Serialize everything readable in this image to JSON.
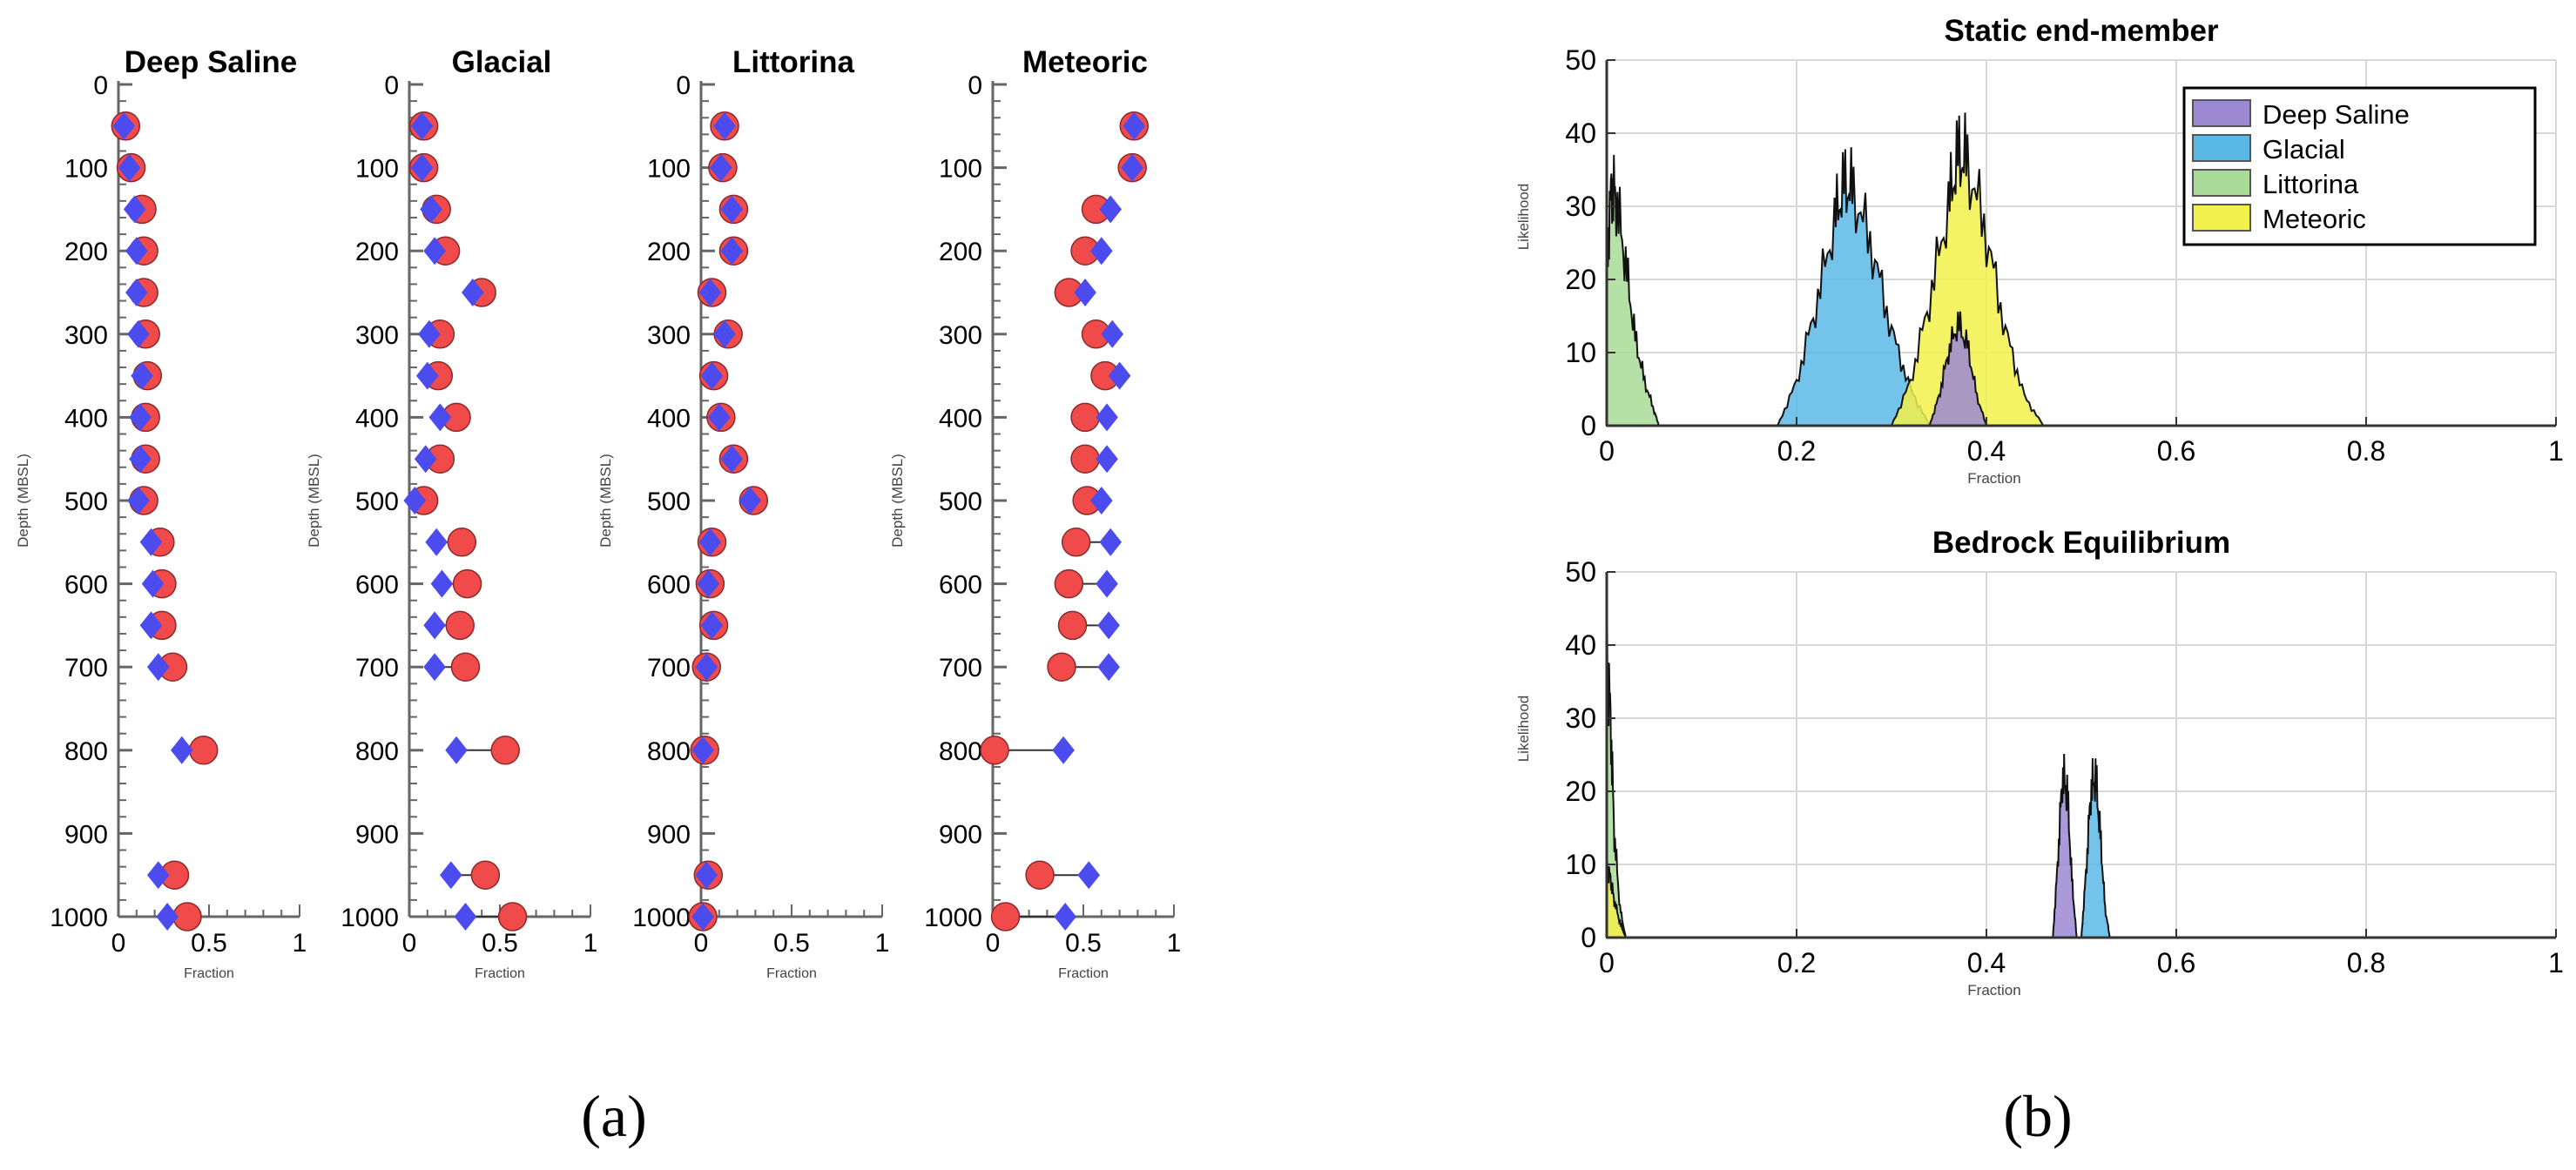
{
  "figure": {
    "panel_a_label": "(a)",
    "panel_b_label": "(b)"
  },
  "chart_data": [
    {
      "id": "depth-deep-saline",
      "type": "scatter",
      "title": "Deep Saline",
      "xlabel": "Fraction",
      "ylabel": "Depth (MBSL)",
      "xlim": [
        0,
        1
      ],
      "ylim": [
        1000,
        0
      ],
      "xticks": [
        0,
        0.5,
        1
      ],
      "xtick_labels": [
        "0",
        "0.5",
        "1"
      ],
      "yticks": [
        0,
        100,
        200,
        300,
        400,
        500,
        600,
        700,
        800,
        900,
        1000
      ],
      "series": [
        {
          "name": "circle",
          "marker": "circle",
          "color": "#f04a4a",
          "depth": [
            50,
            100,
            150,
            200,
            250,
            300,
            350,
            400,
            450,
            500,
            550,
            600,
            650,
            700,
            800,
            950,
            1000
          ],
          "values": [
            0.04,
            0.07,
            0.13,
            0.14,
            0.14,
            0.15,
            0.16,
            0.15,
            0.15,
            0.14,
            0.23,
            0.24,
            0.24,
            0.3,
            0.47,
            0.31,
            0.38
          ]
        },
        {
          "name": "diamond",
          "marker": "diamond",
          "color": "#4b4bee",
          "depth": [
            50,
            100,
            150,
            200,
            250,
            300,
            350,
            400,
            450,
            500,
            550,
            600,
            650,
            700,
            800,
            950,
            1000
          ],
          "values": [
            0.03,
            0.06,
            0.09,
            0.1,
            0.1,
            0.11,
            0.13,
            0.12,
            0.12,
            0.11,
            0.18,
            0.19,
            0.18,
            0.22,
            0.35,
            0.22,
            0.27
          ]
        }
      ]
    },
    {
      "id": "depth-glacial",
      "type": "scatter",
      "title": "Glacial",
      "xlabel": "Fraction",
      "ylabel": "Depth (MBSL)",
      "xlim": [
        0,
        1
      ],
      "ylim": [
        1000,
        0
      ],
      "xticks": [
        0,
        0.5,
        1
      ],
      "xtick_labels": [
        "0",
        "0.5",
        "1"
      ],
      "yticks": [
        0,
        100,
        200,
        300,
        400,
        500,
        600,
        700,
        800,
        900,
        1000
      ],
      "series": [
        {
          "name": "circle",
          "marker": "circle",
          "color": "#f04a4a",
          "depth": [
            50,
            100,
            150,
            200,
            250,
            300,
            350,
            400,
            450,
            500,
            550,
            600,
            650,
            700,
            800,
            950,
            1000
          ],
          "values": [
            0.08,
            0.08,
            0.15,
            0.2,
            0.4,
            0.17,
            0.16,
            0.26,
            0.17,
            0.08,
            0.29,
            0.32,
            0.28,
            0.31,
            0.53,
            0.42,
            0.57
          ]
        },
        {
          "name": "diamond",
          "marker": "diamond",
          "color": "#4b4bee",
          "depth": [
            50,
            100,
            150,
            200,
            250,
            300,
            350,
            400,
            450,
            500,
            550,
            600,
            650,
            700,
            800,
            950,
            1000
          ],
          "values": [
            0.07,
            0.07,
            0.12,
            0.14,
            0.35,
            0.11,
            0.1,
            0.17,
            0.09,
            0.03,
            0.15,
            0.18,
            0.14,
            0.14,
            0.26,
            0.23,
            0.31
          ]
        }
      ]
    },
    {
      "id": "depth-littorina",
      "type": "scatter",
      "title": "Littorina",
      "xlabel": "Fraction",
      "ylabel": "Depth (MBSL)",
      "xlim": [
        0,
        1
      ],
      "ylim": [
        1000,
        0
      ],
      "xticks": [
        0,
        0.5,
        1
      ],
      "xtick_labels": [
        "0",
        "0.5",
        "1"
      ],
      "yticks": [
        0,
        100,
        200,
        300,
        400,
        500,
        600,
        700,
        800,
        900,
        1000
      ],
      "series": [
        {
          "name": "circle",
          "marker": "circle",
          "color": "#f04a4a",
          "depth": [
            50,
            100,
            150,
            200,
            250,
            300,
            350,
            400,
            450,
            500,
            550,
            600,
            650,
            700,
            800,
            950,
            1000
          ],
          "values": [
            0.13,
            0.12,
            0.18,
            0.18,
            0.06,
            0.15,
            0.07,
            0.11,
            0.18,
            0.29,
            0.06,
            0.05,
            0.07,
            0.03,
            0.02,
            0.04,
            0.01
          ]
        },
        {
          "name": "diamond",
          "marker": "diamond",
          "color": "#4b4bee",
          "depth": [
            50,
            100,
            150,
            200,
            250,
            300,
            350,
            400,
            450,
            500,
            550,
            600,
            650,
            700,
            800,
            950,
            1000
          ],
          "values": [
            0.13,
            0.11,
            0.17,
            0.17,
            0.05,
            0.13,
            0.06,
            0.1,
            0.17,
            0.27,
            0.05,
            0.04,
            0.06,
            0.03,
            0.01,
            0.03,
            0.01
          ]
        }
      ]
    },
    {
      "id": "depth-meteoric",
      "type": "scatter",
      "title": "Meteoric",
      "xlabel": "Fraction",
      "ylabel": "Depth (MBSL)",
      "xlim": [
        0,
        1
      ],
      "ylim": [
        1000,
        0
      ],
      "xticks": [
        0,
        0.5,
        1
      ],
      "xtick_labels": [
        "0",
        "0.5",
        "1"
      ],
      "yticks": [
        0,
        100,
        200,
        300,
        400,
        500,
        600,
        700,
        800,
        900,
        1000
      ],
      "series": [
        {
          "name": "circle",
          "marker": "circle",
          "color": "#f04a4a",
          "depth": [
            50,
            100,
            150,
            200,
            250,
            300,
            350,
            400,
            450,
            500,
            550,
            600,
            650,
            700,
            800,
            950,
            1000
          ],
          "values": [
            0.78,
            0.77,
            0.57,
            0.51,
            0.42,
            0.57,
            0.62,
            0.51,
            0.51,
            0.52,
            0.46,
            0.42,
            0.44,
            0.38,
            0.01,
            0.26,
            0.07
          ]
        },
        {
          "name": "diamond",
          "marker": "diamond",
          "color": "#4b4bee",
          "depth": [
            50,
            100,
            150,
            200,
            250,
            300,
            350,
            400,
            450,
            500,
            550,
            600,
            650,
            700,
            800,
            950,
            1000
          ],
          "values": [
            0.78,
            0.77,
            0.65,
            0.6,
            0.51,
            0.66,
            0.7,
            0.63,
            0.63,
            0.6,
            0.65,
            0.63,
            0.64,
            0.64,
            0.39,
            0.53,
            0.4
          ]
        }
      ]
    },
    {
      "id": "hist-static",
      "type": "area",
      "title": "Static end-member",
      "xlabel": "Fraction",
      "ylabel": "Likelihood",
      "xlim": [
        0,
        1
      ],
      "ylim": [
        0,
        50
      ],
      "xticks": [
        0,
        0.2,
        0.4,
        0.6,
        0.8,
        1
      ],
      "xtick_labels": [
        "0",
        "0.2",
        "0.4",
        "0.6",
        "0.8",
        "1"
      ],
      "yticks": [
        0,
        10,
        20,
        30,
        40,
        50
      ],
      "grid": true,
      "legend": "top-right",
      "series": [
        {
          "name": "Littorina",
          "color": "#a8dc98",
          "x": [
            0,
            0.005,
            0.01,
            0.02,
            0.03,
            0.04,
            0.05,
            0.055
          ],
          "values": [
            22,
            33,
            31,
            22,
            12,
            6,
            2,
            0
          ]
        },
        {
          "name": "Glacial",
          "color": "#5ab8e6",
          "x": [
            0.18,
            0.2,
            0.22,
            0.24,
            0.25,
            0.26,
            0.28,
            0.3,
            0.32,
            0.34
          ],
          "values": [
            0,
            6,
            16,
            28,
            33,
            32,
            24,
            13,
            5,
            0
          ]
        },
        {
          "name": "Meteoric",
          "color": "#f2f04a",
          "x": [
            0.3,
            0.32,
            0.34,
            0.36,
            0.37,
            0.38,
            0.4,
            0.42,
            0.44,
            0.46
          ],
          "values": [
            0,
            6,
            17,
            30,
            37,
            36,
            26,
            13,
            4,
            0
          ]
        },
        {
          "name": "Deep Saline",
          "color": "#9b88d2",
          "x": [
            0.34,
            0.35,
            0.36,
            0.37,
            0.38,
            0.39,
            0.4
          ],
          "values": [
            0,
            4,
            10,
            14,
            11,
            4,
            0
          ]
        }
      ],
      "legend_order": [
        "Deep Saline",
        "Glacial",
        "Littorina",
        "Meteoric"
      ]
    },
    {
      "id": "hist-bedrock",
      "type": "area",
      "title": "Bedrock Equilibrium",
      "xlabel": "Fraction",
      "ylabel": "Likelihood",
      "xlim": [
        0,
        1
      ],
      "ylim": [
        0,
        50
      ],
      "xticks": [
        0,
        0.2,
        0.4,
        0.6,
        0.8,
        1
      ],
      "xtick_labels": [
        "0",
        "0.2",
        "0.4",
        "0.6",
        "0.8",
        "1"
      ],
      "yticks": [
        0,
        10,
        20,
        30,
        40,
        50
      ],
      "grid": true,
      "series": [
        {
          "name": "Littorina",
          "color": "#a8dc98",
          "x": [
            0,
            0.004,
            0.008,
            0.014,
            0.02
          ],
          "values": [
            40,
            30,
            14,
            4,
            0
          ]
        },
        {
          "name": "Meteoric",
          "color": "#f2f04a",
          "x": [
            0,
            0.004,
            0.008,
            0.014,
            0.02
          ],
          "values": [
            10,
            8,
            5,
            2,
            0
          ]
        },
        {
          "name": "Deep Saline",
          "color": "#9b88d2",
          "x": [
            0.47,
            0.475,
            0.48,
            0.485,
            0.49,
            0.495
          ],
          "values": [
            0,
            10,
            22,
            20,
            8,
            0
          ]
        },
        {
          "name": "Glacial",
          "color": "#5ab8e6",
          "x": [
            0.5,
            0.505,
            0.51,
            0.515,
            0.52,
            0.525,
            0.53
          ],
          "values": [
            0,
            9,
            20,
            22,
            14,
            4,
            0
          ]
        }
      ]
    }
  ]
}
